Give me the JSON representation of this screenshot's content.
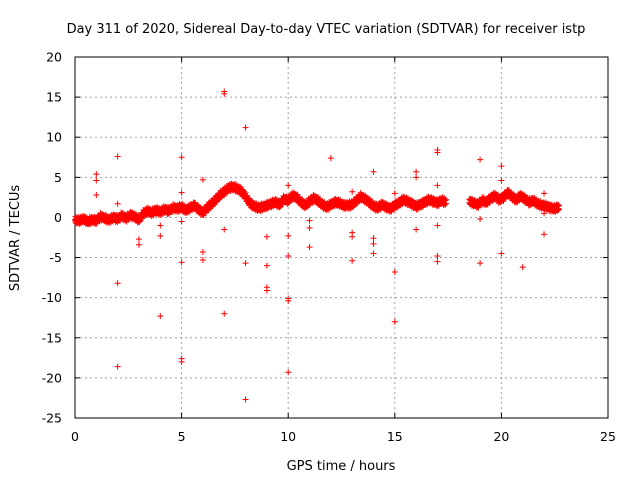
{
  "chart_data": {
    "type": "scatter",
    "title": "Day 311 of 2020, Sidereal Day-to-day VTEC variation (SDTVAR) for receiver istp",
    "xlabel": "GPS time / hours",
    "ylabel": "SDTVAR / TECUs",
    "xlim": [
      0,
      25
    ],
    "ylim": [
      -25,
      20
    ],
    "xticks": [
      0,
      5,
      10,
      15,
      20,
      25
    ],
    "yticks": [
      -25,
      -20,
      -15,
      -10,
      -5,
      0,
      5,
      10,
      15,
      20
    ],
    "grid": true,
    "marker": "+",
    "color": "#ff0000",
    "band": [
      [
        0.0,
        -0.3
      ],
      [
        0.2,
        -0.4
      ],
      [
        0.4,
        -0.2
      ],
      [
        0.6,
        -0.5
      ],
      [
        0.8,
        -0.3
      ],
      [
        1.0,
        -0.4
      ],
      [
        1.2,
        0.1
      ],
      [
        1.4,
        -0.1
      ],
      [
        1.6,
        -0.3
      ],
      [
        1.8,
        0.0
      ],
      [
        2.0,
        -0.2
      ],
      [
        2.2,
        0.2
      ],
      [
        2.4,
        -0.1
      ],
      [
        2.6,
        0.3
      ],
      [
        2.8,
        0.1
      ],
      [
        3.0,
        -0.3
      ],
      [
        3.2,
        0.5
      ],
      [
        3.4,
        0.8
      ],
      [
        3.6,
        0.6
      ],
      [
        3.8,
        0.9
      ],
      [
        4.0,
        0.7
      ],
      [
        4.2,
        1.0
      ],
      [
        4.4,
        0.8
      ],
      [
        4.6,
        1.2
      ],
      [
        4.8,
        1.1
      ],
      [
        5.0,
        1.3
      ],
      [
        5.2,
        0.9
      ],
      [
        5.4,
        1.2
      ],
      [
        5.6,
        1.5
      ],
      [
        5.8,
        1.0
      ],
      [
        6.0,
        0.6
      ],
      [
        6.2,
        1.2
      ],
      [
        6.4,
        1.7
      ],
      [
        6.6,
        2.2
      ],
      [
        6.8,
        2.8
      ],
      [
        7.0,
        3.2
      ],
      [
        7.2,
        3.7
      ],
      [
        7.4,
        3.8
      ],
      [
        7.6,
        3.6
      ],
      [
        7.8,
        3.3
      ],
      [
        8.0,
        2.6
      ],
      [
        8.2,
        1.8
      ],
      [
        8.4,
        1.4
      ],
      [
        8.6,
        1.2
      ],
      [
        8.8,
        1.3
      ],
      [
        9.0,
        1.5
      ],
      [
        9.2,
        1.7
      ],
      [
        9.4,
        1.9
      ],
      [
        9.6,
        1.6
      ],
      [
        9.8,
        2.3
      ],
      [
        10.0,
        2.1
      ],
      [
        10.2,
        2.7
      ],
      [
        10.4,
        2.5
      ],
      [
        10.6,
        1.9
      ],
      [
        10.8,
        1.5
      ],
      [
        11.0,
        2.0
      ],
      [
        11.2,
        2.4
      ],
      [
        11.4,
        2.1
      ],
      [
        11.6,
        1.6
      ],
      [
        11.8,
        1.3
      ],
      [
        12.0,
        1.6
      ],
      [
        12.2,
        1.9
      ],
      [
        12.4,
        1.8
      ],
      [
        12.6,
        1.5
      ],
      [
        12.8,
        1.5
      ],
      [
        13.0,
        1.6
      ],
      [
        13.2,
        2.1
      ],
      [
        13.4,
        2.6
      ],
      [
        13.6,
        2.3
      ],
      [
        13.8,
        1.9
      ],
      [
        14.0,
        1.4
      ],
      [
        14.2,
        1.2
      ],
      [
        14.4,
        1.6
      ],
      [
        14.6,
        1.3
      ],
      [
        14.8,
        1.1
      ],
      [
        15.0,
        1.5
      ],
      [
        15.2,
        1.8
      ],
      [
        15.4,
        2.2
      ],
      [
        15.6,
        2.0
      ],
      [
        15.8,
        1.7
      ],
      [
        16.0,
        1.4
      ],
      [
        16.2,
        1.6
      ],
      [
        16.4,
        1.9
      ],
      [
        16.6,
        2.2
      ],
      [
        16.8,
        2.0
      ],
      [
        17.0,
        1.8
      ],
      [
        17.2,
        2.1
      ],
      [
        17.4,
        1.9
      ],
      [
        18.5,
        2.0
      ],
      [
        18.7,
        1.8
      ],
      [
        18.9,
        1.6
      ],
      [
        19.1,
        2.1
      ],
      [
        19.3,
        1.9
      ],
      [
        19.5,
        2.4
      ],
      [
        19.7,
        2.7
      ],
      [
        19.9,
        2.2
      ],
      [
        20.1,
        2.5
      ],
      [
        20.3,
        3.1
      ],
      [
        20.5,
        2.6
      ],
      [
        20.7,
        2.2
      ],
      [
        20.9,
        2.7
      ],
      [
        21.1,
        2.3
      ],
      [
        21.3,
        1.9
      ],
      [
        21.5,
        2.1
      ],
      [
        21.7,
        1.7
      ],
      [
        21.9,
        1.5
      ],
      [
        22.1,
        1.4
      ],
      [
        22.3,
        1.2
      ],
      [
        22.5,
        1.1
      ],
      [
        22.7,
        1.3
      ]
    ],
    "outliers": [
      [
        1.0,
        5.4
      ],
      [
        1.0,
        4.6
      ],
      [
        1.0,
        2.8
      ],
      [
        2.0,
        7.6
      ],
      [
        2.0,
        1.7
      ],
      [
        2.0,
        -8.2
      ],
      [
        2.0,
        -18.6
      ],
      [
        3.0,
        -2.7
      ],
      [
        3.0,
        -3.4
      ],
      [
        4.0,
        -12.3
      ],
      [
        4.0,
        -2.3
      ],
      [
        4.0,
        -1.0
      ],
      [
        5.0,
        7.5
      ],
      [
        5.0,
        3.1
      ],
      [
        5.0,
        -0.5
      ],
      [
        5.0,
        -5.6
      ],
      [
        5.0,
        -17.6
      ],
      [
        5.0,
        -18.0
      ],
      [
        6.0,
        4.7
      ],
      [
        6.0,
        -4.3
      ],
      [
        6.0,
        -5.3
      ],
      [
        7.0,
        15.4
      ],
      [
        7.0,
        15.7
      ],
      [
        7.0,
        -1.5
      ],
      [
        7.0,
        -12.0
      ],
      [
        8.0,
        11.2
      ],
      [
        8.0,
        -5.7
      ],
      [
        8.0,
        -22.7
      ],
      [
        9.0,
        -2.4
      ],
      [
        9.0,
        -6.0
      ],
      [
        9.0,
        -8.7
      ],
      [
        9.0,
        -9.1
      ],
      [
        10.0,
        4.0
      ],
      [
        10.0,
        -2.3
      ],
      [
        10.0,
        -4.8
      ],
      [
        10.0,
        -10.1
      ],
      [
        10.0,
        -10.4
      ],
      [
        10.0,
        -19.3
      ],
      [
        11.0,
        -0.4
      ],
      [
        11.0,
        -1.3
      ],
      [
        11.0,
        -3.7
      ],
      [
        12.0,
        7.4
      ],
      [
        13.0,
        3.2
      ],
      [
        13.0,
        -1.9
      ],
      [
        13.0,
        -2.4
      ],
      [
        13.0,
        -5.4
      ],
      [
        14.0,
        5.7
      ],
      [
        14.0,
        -2.6
      ],
      [
        14.0,
        -3.3
      ],
      [
        14.0,
        -4.5
      ],
      [
        15.0,
        3.0
      ],
      [
        15.0,
        -6.8
      ],
      [
        15.0,
        -13.0
      ],
      [
        16.0,
        5.7
      ],
      [
        16.0,
        5.0
      ],
      [
        16.0,
        -1.5
      ],
      [
        17.0,
        8.4
      ],
      [
        17.0,
        8.1
      ],
      [
        17.0,
        4.0
      ],
      [
        17.0,
        -1.0
      ],
      [
        17.0,
        -4.8
      ],
      [
        17.0,
        -5.5
      ],
      [
        19.0,
        7.2
      ],
      [
        19.0,
        -0.2
      ],
      [
        19.0,
        -5.7
      ],
      [
        20.0,
        6.4
      ],
      [
        20.0,
        4.6
      ],
      [
        20.0,
        -4.5
      ],
      [
        21.0,
        -6.2
      ],
      [
        22.0,
        3.0
      ],
      [
        22.0,
        0.5
      ],
      [
        22.0,
        -2.1
      ]
    ]
  }
}
